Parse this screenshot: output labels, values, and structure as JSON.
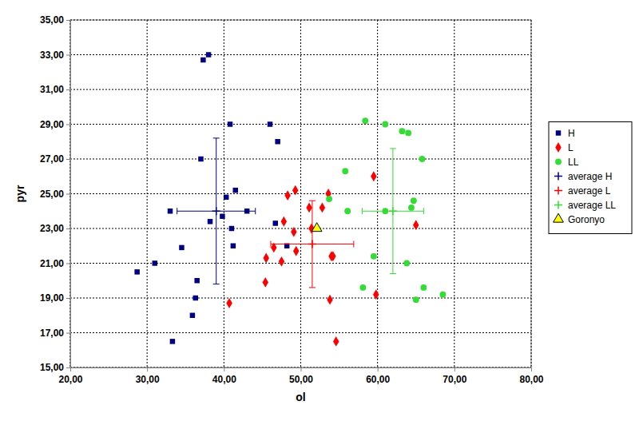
{
  "chart_data": {
    "type": "scatter",
    "x_label": "ol",
    "y_label": "pyr",
    "xlim": [
      20,
      80
    ],
    "ylim": [
      15,
      35
    ],
    "xticks": [
      {
        "value": 20,
        "label": "20,00"
      },
      {
        "value": 30,
        "label": "30,00"
      },
      {
        "value": 40,
        "label": "40,00"
      },
      {
        "value": 50,
        "label": "50,00"
      },
      {
        "value": 60,
        "label": "60,00"
      },
      {
        "value": 70,
        "label": "70,00"
      },
      {
        "value": 80,
        "label": "80,00"
      }
    ],
    "yticks": [
      {
        "value": 15,
        "label": "15,00"
      },
      {
        "value": 17,
        "label": "17,00"
      },
      {
        "value": 19,
        "label": "19,00"
      },
      {
        "value": 21,
        "label": "21,00"
      },
      {
        "value": 23,
        "label": "23,00"
      },
      {
        "value": 25,
        "label": "25,00"
      },
      {
        "value": 27,
        "label": "27,00"
      },
      {
        "value": 29,
        "label": "29,00"
      },
      {
        "value": 31,
        "label": "31,00"
      },
      {
        "value": 33,
        "label": "33,00"
      },
      {
        "value": 35,
        "label": "35,00"
      }
    ],
    "grid": true,
    "legend": "right",
    "series": [
      {
        "name": "H",
        "color": "#000080",
        "marker": "square",
        "x": [
          38.0,
          37.3,
          40.8,
          46.0,
          47.0,
          37.0,
          41.5,
          40.3,
          33.0,
          43.0,
          39.8,
          38.2,
          46.7,
          41.0,
          41.2,
          48.2,
          34.5,
          31.0,
          28.7,
          36.5,
          36.3,
          35.9,
          33.3
        ],
        "values": [
          33.0,
          32.7,
          29.0,
          29.0,
          28.0,
          27.0,
          25.2,
          24.8,
          24.0,
          24.0,
          23.7,
          23.4,
          23.3,
          23.0,
          22.0,
          22.0,
          21.9,
          21.0,
          20.5,
          20.0,
          19.0,
          18.0,
          16.5
        ]
      },
      {
        "name": "L",
        "color": "#ff0000",
        "marker": "diamond",
        "x": [
          40.7,
          45.5,
          45.4,
          46.5,
          47.5,
          47.8,
          48.3,
          49.3,
          49.1,
          49.4,
          51.1,
          52.8,
          53.6,
          51.4,
          54.0,
          54.2,
          53.8,
          54.6,
          59.5,
          59.8,
          65.0
        ],
        "values": [
          18.7,
          21.3,
          19.9,
          21.9,
          21.1,
          23.4,
          24.9,
          25.2,
          22.8,
          21.7,
          24.2,
          24.2,
          25.0,
          23.0,
          21.4,
          21.4,
          18.9,
          16.5,
          26.0,
          19.2,
          23.2
        ]
      },
      {
        "name": "LL",
        "color": "#33dd33",
        "marker": "circle",
        "x": [
          58.4,
          61.0,
          63.2,
          64.0,
          55.8,
          65.8,
          53.7,
          64.7,
          56.1,
          61.0,
          64.4,
          59.5,
          63.8,
          58.1,
          66.0,
          65.0,
          68.5
        ],
        "values": [
          29.2,
          29.0,
          28.6,
          28.5,
          26.3,
          27.0,
          24.7,
          24.6,
          24.0,
          24.0,
          24.2,
          21.4,
          21.0,
          19.6,
          19.6,
          18.9,
          19.2
        ]
      },
      {
        "name": "average H",
        "color": "#000080",
        "marker": "plus",
        "x": [
          39.0
        ],
        "values": [
          24.0
        ],
        "x_error": [
          5.1
        ],
        "y_error": [
          4.2
        ]
      },
      {
        "name": "average L",
        "color": "#ff0000",
        "marker": "plus",
        "x": [
          51.5
        ],
        "values": [
          22.1
        ],
        "x_error": [
          5.4
        ],
        "y_error": [
          2.5
        ]
      },
      {
        "name": "average LL",
        "color": "#33dd33",
        "marker": "plus",
        "x": [
          62.0
        ],
        "values": [
          24.0
        ],
        "x_error": [
          4.0
        ],
        "y_error": [
          3.6
        ]
      },
      {
        "name": "Goronyo",
        "color": "#ffff00",
        "marker": "triangle",
        "x": [
          52.1
        ],
        "values": [
          23.0
        ]
      }
    ]
  }
}
